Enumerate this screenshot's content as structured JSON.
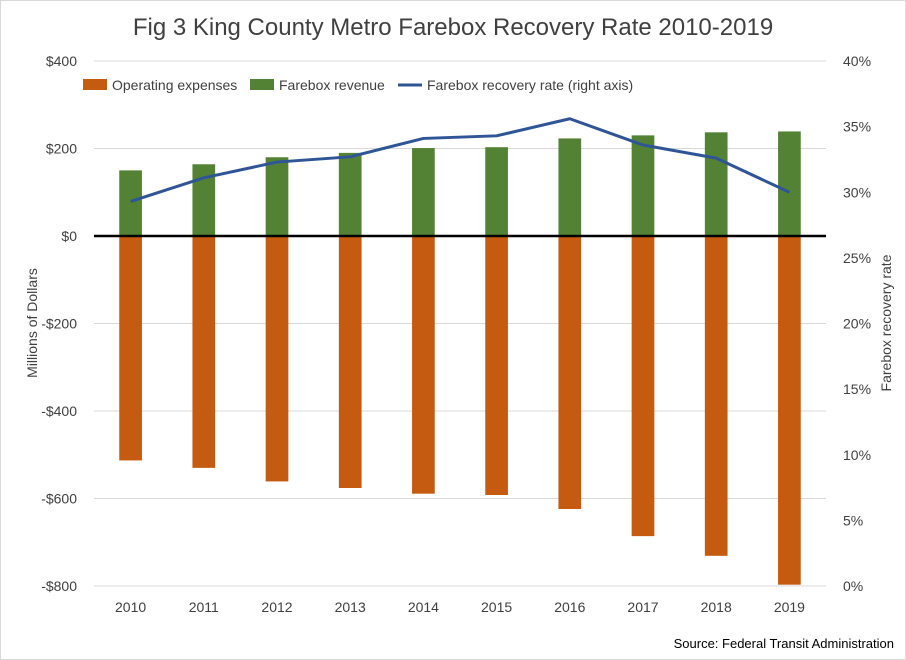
{
  "chart_data": {
    "type": "bar",
    "title": "Fig 3 King County Metro Farebox Recovery Rate 2010-2019",
    "categories": [
      "2010",
      "2011",
      "2012",
      "2013",
      "2014",
      "2015",
      "2016",
      "2017",
      "2018",
      "2019"
    ],
    "ylabel": "Millions of Dollars",
    "y2label": "Farebox recovery rate",
    "ylim": [
      -800,
      400
    ],
    "y2lim": [
      0,
      0.4
    ],
    "yticks": [
      {
        "value": 400,
        "label": "$400"
      },
      {
        "value": 200,
        "label": "$200"
      },
      {
        "value": 0,
        "label": "$0"
      },
      {
        "value": -200,
        "label": "-$200"
      },
      {
        "value": -400,
        "label": "-$400"
      },
      {
        "value": -600,
        "label": "-$600"
      },
      {
        "value": -800,
        "label": "-$800"
      }
    ],
    "y2ticks": [
      {
        "value": 0.4,
        "label": "40%"
      },
      {
        "value": 0.35,
        "label": "35%"
      },
      {
        "value": 0.3,
        "label": "30%"
      },
      {
        "value": 0.25,
        "label": "25%"
      },
      {
        "value": 0.2,
        "label": "20%"
      },
      {
        "value": 0.15,
        "label": "15%"
      },
      {
        "value": 0.1,
        "label": "10%"
      },
      {
        "value": 0.05,
        "label": "5%"
      },
      {
        "value": 0.0,
        "label": "0%"
      }
    ],
    "grid": true,
    "legend_position": "top-left",
    "series": [
      {
        "name": "Operating expenses",
        "type": "bar",
        "axis": "left",
        "color": "#c55a11",
        "values": [
          -513,
          -530,
          -561,
          -576,
          -589,
          -592,
          -624,
          -686,
          -731,
          -797
        ]
      },
      {
        "name": "Farebox revenue",
        "type": "bar",
        "axis": "left",
        "color": "#548235",
        "values": [
          150,
          164,
          180,
          190,
          201,
          203,
          223,
          230,
          237,
          239
        ]
      },
      {
        "name": "Farebox recovery rate (right axis)",
        "type": "line",
        "axis": "right",
        "color": "#2f5597",
        "values": [
          0.293,
          0.311,
          0.323,
          0.327,
          0.341,
          0.343,
          0.356,
          0.336,
          0.326,
          0.3
        ]
      }
    ]
  },
  "source": "Source: Federal Transit Administration"
}
